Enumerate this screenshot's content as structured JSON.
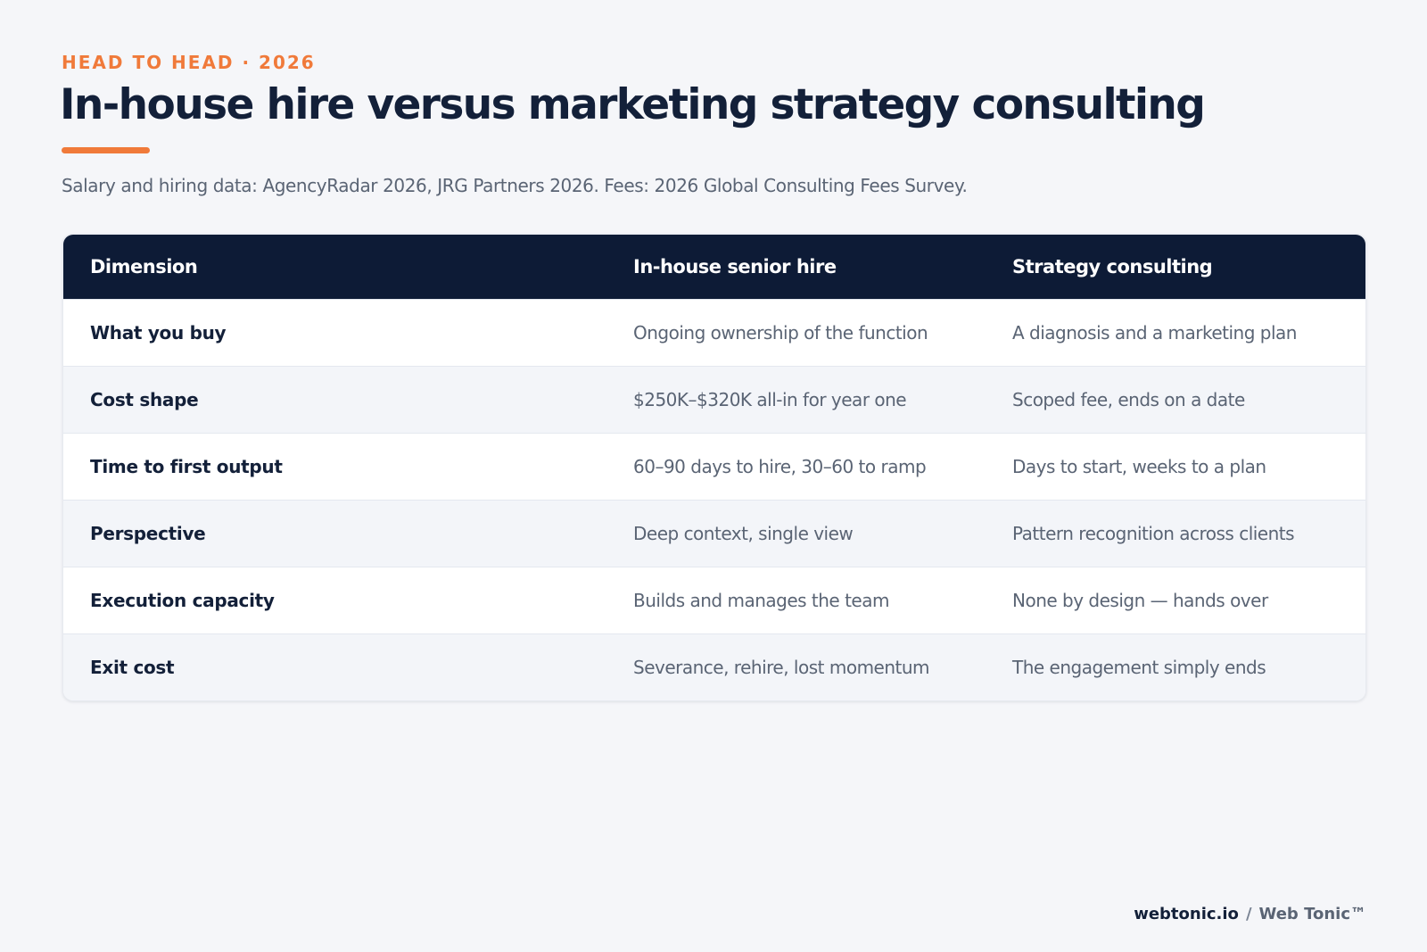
{
  "header": {
    "eyebrow": "HEAD TO HEAD · 2026",
    "title": "In-house hire versus marketing strategy consulting",
    "subtitle": "Salary and hiring data: AgencyRadar 2026, JRG Partners 2026. Fees: 2026 Global Consulting Fees Survey."
  },
  "table": {
    "columns": [
      "Dimension",
      "In-house senior hire",
      "Strategy consulting"
    ],
    "rows": [
      [
        "What you buy",
        "Ongoing ownership of the function",
        "A diagnosis and a marketing plan"
      ],
      [
        "Cost shape",
        "$250K–$320K all-in for year one",
        "Scoped fee, ends on a date"
      ],
      [
        "Time to first output",
        "60–90 days to hire, 30–60 to ramp",
        "Days to start, weeks to a plan"
      ],
      [
        "Perspective",
        "Deep context, single view",
        "Pattern recognition across clients"
      ],
      [
        "Execution capacity",
        "Builds and manages the team",
        "None by design — hands over"
      ],
      [
        "Exit cost",
        "Severance, rehire, lost momentum",
        "The engagement simply ends"
      ]
    ]
  },
  "footer": {
    "site": "webtonic.io",
    "separator": "/",
    "brand": "Web Tonic™"
  },
  "colors": {
    "accent": "#f07a3a",
    "navy": "#0d1b36",
    "title": "#132039",
    "muted": "#5a6474",
    "background": "#f5f6f9"
  }
}
